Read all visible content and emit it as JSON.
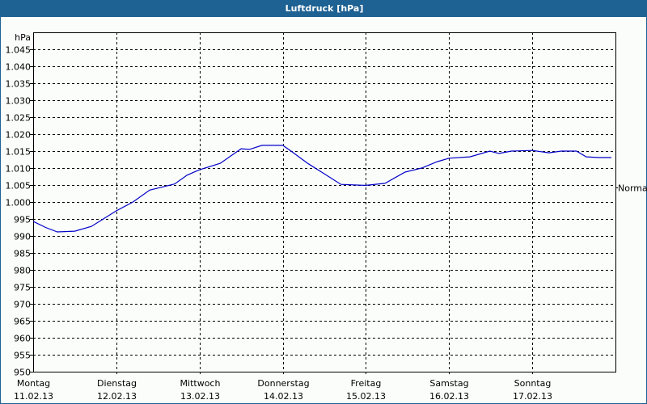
{
  "window": {
    "title": "Luftdruck [hPa]"
  },
  "colors": {
    "titlebar": "#1e6193",
    "line": "#0000c8",
    "grid": "#000000",
    "background": "#fbfdfb"
  },
  "chart_data": {
    "type": "line",
    "title": "Luftdruck [hPa]",
    "ylabel": "hPa",
    "xlabel": "",
    "ylim": [
      950,
      1045
    ],
    "y_ticks": [
      "1.045",
      "1.040",
      "1.035",
      "1.030",
      "1.025",
      "1.020",
      "1.015",
      "1.010",
      "1.005",
      "1.000",
      "995",
      "990",
      "985",
      "980",
      "975",
      "970",
      "965",
      "960",
      "955",
      "950"
    ],
    "x_ticks": [
      {
        "day": "Montag",
        "date": "11.02.13"
      },
      {
        "day": "Dienstag",
        "date": "12.02.13"
      },
      {
        "day": "Mittwoch",
        "date": "13.02.13"
      },
      {
        "day": "Donnerstag",
        "date": "14.02.13"
      },
      {
        "day": "Freitag",
        "date": "15.02.13"
      },
      {
        "day": "Samstag",
        "date": "16.02.13"
      },
      {
        "day": "Sonntag",
        "date": "17.02.13"
      }
    ],
    "reference_line": {
      "label": "Normal",
      "value": 1004.3
    },
    "grid": true,
    "series": [
      {
        "name": "Luftdruck",
        "x_days": [
          0,
          0.15,
          0.29,
          0.5,
          0.7,
          1.0,
          1.2,
          1.4,
          1.7,
          1.85,
          2.0,
          2.25,
          2.5,
          2.6,
          2.75,
          3.0,
          3.1,
          3.3,
          3.5,
          3.7,
          3.98,
          4.0,
          4.23,
          4.47,
          4.67,
          4.86,
          5.0,
          5.25,
          5.49,
          5.6,
          5.75,
          6.0,
          6.2,
          6.35,
          6.53,
          6.65,
          6.8,
          6.95
        ],
        "values": [
          994.3,
          992.5,
          991.2,
          991.4,
          992.8,
          997.4,
          1000.0,
          1003.5,
          1005.3,
          1007.9,
          1009.5,
          1011.4,
          1015.7,
          1015.5,
          1016.7,
          1016.7,
          1015.0,
          1011.4,
          1008.3,
          1005.2,
          1004.9,
          1004.9,
          1005.5,
          1008.8,
          1010.0,
          1011.9,
          1012.9,
          1013.3,
          1015.0,
          1014.3,
          1015.0,
          1015.2,
          1014.5,
          1015.0,
          1015.0,
          1013.3,
          1013.1,
          1013.1
        ]
      }
    ]
  }
}
